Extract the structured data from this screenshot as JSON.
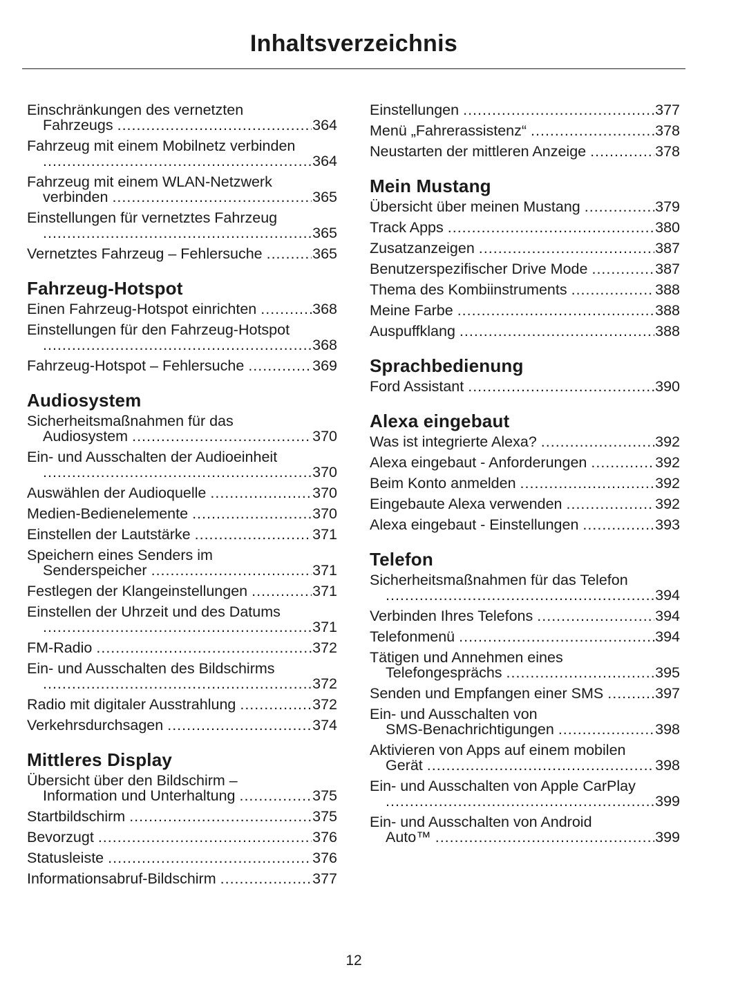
{
  "title": "Inhaltsverzeichnis",
  "page_number": "12",
  "columns": [
    [
      {
        "entries": [
          {
            "text": "Einschränkungen des vernetzten",
            "cont": "Fahrzeugs",
            "page": "364"
          },
          {
            "text": "Fahrzeug mit einem Mobilnetz verbinden",
            "cont": "",
            "page": "364"
          },
          {
            "text": "Fahrzeug mit einem WLAN-Netzwerk",
            "cont": "verbinden",
            "page": "365"
          },
          {
            "text": "Einstellungen für vernetztes Fahrzeug",
            "cont": "",
            "page": "365"
          },
          {
            "text": "Vernetztes Fahrzeug – Fehlersuche",
            "page": "365"
          }
        ]
      },
      {
        "heading": "Fahrzeug-Hotspot",
        "entries": [
          {
            "text": "Einen Fahrzeug-Hotspot einrichten",
            "page": "368"
          },
          {
            "text": "Einstellungen für den Fahrzeug-Hotspot",
            "cont": "",
            "page": "368"
          },
          {
            "text": "Fahrzeug-Hotspot – Fehlersuche",
            "page": "369"
          }
        ]
      },
      {
        "heading": "Audiosystem",
        "entries": [
          {
            "text": "Sicherheitsmaßnahmen für das",
            "cont": "Audiosystem",
            "page": "370"
          },
          {
            "text": "Ein- und Ausschalten der Audioeinheit",
            "cont": "",
            "page": "370"
          },
          {
            "text": "Auswählen der Audioquelle",
            "page": "370"
          },
          {
            "text": "Medien-Bedienelemente",
            "page": "370"
          },
          {
            "text": "Einstellen der Lautstärke",
            "page": "371"
          },
          {
            "text": "Speichern eines Senders im",
            "cont": "Senderspeicher",
            "page": "371"
          },
          {
            "text": "Festlegen der Klangeinstellungen",
            "page": "371"
          },
          {
            "text": "Einstellen der Uhrzeit und des Datums",
            "cont": "",
            "page": "371"
          },
          {
            "text": "FM-Radio",
            "page": "372"
          },
          {
            "text": "Ein- und Ausschalten des Bildschirms",
            "cont": "",
            "page": "372"
          },
          {
            "text": "Radio mit digitaler Ausstrahlung",
            "page": "372"
          },
          {
            "text": "Verkehrsdurchsagen",
            "page": "374"
          }
        ]
      },
      {
        "heading": "Mittleres Display",
        "entries": [
          {
            "text": "Übersicht über den Bildschirm –",
            "cont": "Information und Unterhaltung",
            "page": "375"
          },
          {
            "text": "Startbildschirm",
            "page": "375"
          },
          {
            "text": "Bevorzugt",
            "page": "376"
          },
          {
            "text": "Statusleiste",
            "page": "376"
          },
          {
            "text": "Informationsabruf-Bildschirm",
            "page": "377"
          }
        ]
      }
    ],
    [
      {
        "entries": [
          {
            "text": "Einstellungen",
            "page": "377"
          },
          {
            "text": "Menü „Fahrerassistenz“",
            "page": "378"
          },
          {
            "text": "Neustarten der mittleren Anzeige",
            "page": "378"
          }
        ]
      },
      {
        "heading": "Mein Mustang",
        "entries": [
          {
            "text": "Übersicht über meinen Mustang",
            "page": "379"
          },
          {
            "text": "Track Apps",
            "page": "380"
          },
          {
            "text": "Zusatzanzeigen",
            "page": "387"
          },
          {
            "text": "Benutzerspezifischer Drive Mode",
            "page": "387"
          },
          {
            "text": "Thema des Kombiinstruments",
            "page": "388"
          },
          {
            "text": "Meine Farbe",
            "page": "388"
          },
          {
            "text": "Auspuffklang",
            "page": "388"
          }
        ]
      },
      {
        "heading": "Sprachbedienung",
        "entries": [
          {
            "text": "Ford Assistant",
            "page": "390"
          }
        ]
      },
      {
        "heading": "Alexa eingebaut",
        "entries": [
          {
            "text": "Was ist integrierte Alexa?",
            "page": "392"
          },
          {
            "text": "Alexa eingebaut - Anforderungen",
            "page": "392"
          },
          {
            "text": "Beim Konto anmelden",
            "page": "392"
          },
          {
            "text": "Eingebaute Alexa verwenden",
            "page": "392"
          },
          {
            "text": "Alexa eingebaut - Einstellungen",
            "page": "393"
          }
        ]
      },
      {
        "heading": "Telefon",
        "entries": [
          {
            "text": "Sicherheitsmaßnahmen für das Telefon",
            "cont": "",
            "page": "394"
          },
          {
            "text": "Verbinden Ihres Telefons",
            "page": "394"
          },
          {
            "text": "Telefonmenü",
            "page": "394"
          },
          {
            "text": "Tätigen und Annehmen eines",
            "cont": "Telefongesprächs",
            "page": "395"
          },
          {
            "text": "Senden und Empfangen einer SMS",
            "page": "397"
          },
          {
            "text": "Ein- und Ausschalten von",
            "cont": "SMS-Benachrichtigungen",
            "page": "398"
          },
          {
            "text": "Aktivieren von Apps auf einem mobilen",
            "cont": "Gerät",
            "page": "398"
          },
          {
            "text": "Ein- und Ausschalten von Apple CarPlay",
            "cont": "",
            "page": "399"
          },
          {
            "text": "Ein- und Ausschalten von Android",
            "cont": "Auto™",
            "page": "399"
          }
        ]
      }
    ]
  ]
}
